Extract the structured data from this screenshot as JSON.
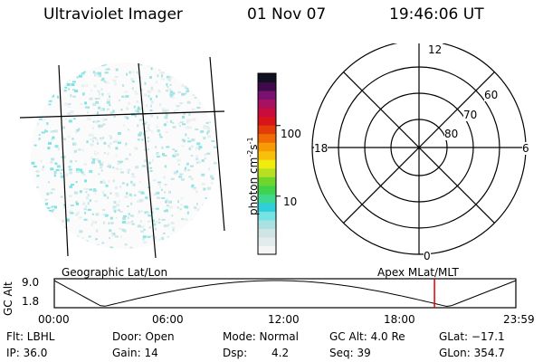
{
  "header": {
    "instrument": "Ultraviolet Imager",
    "date": "01 Nov 07",
    "time": "19:46:06 UT"
  },
  "colorbar": {
    "unit_label": "photon cm",
    "unit_exp1": "-2",
    "unit_mid": "s",
    "unit_exp2": "-1",
    "ticks": [
      {
        "label": "100",
        "value": 100
      },
      {
        "label": "10",
        "value": 10
      }
    ],
    "colors": [
      "#f5f5f5",
      "#e2ecec",
      "#cfe4e4",
      "#a9e0e0",
      "#73e3e3",
      "#2ecfd8",
      "#3fd890",
      "#3fd24a",
      "#6fd62d",
      "#b8e020",
      "#f0ec10",
      "#f8c00a",
      "#f89a06",
      "#f06a06",
      "#e43c08",
      "#d8141a",
      "#c80c3c",
      "#a81060",
      "#7a1070",
      "#3e0a4a",
      "#101020"
    ]
  },
  "polar": {
    "labels_mlt": [
      {
        "label": "12",
        "pos": "top"
      },
      {
        "label": "18",
        "pos": "left"
      },
      {
        "label": "6",
        "pos": "right"
      },
      {
        "label": "0",
        "pos": "bottom"
      }
    ],
    "labels_lat": [
      {
        "label": "60",
        "ring": 3
      },
      {
        "label": "70",
        "ring": 2
      },
      {
        "label": "80",
        "ring": 1
      }
    ]
  },
  "timeline": {
    "left_label": "Geographic Lat/Lon",
    "right_label": "Apex MLat/MLT",
    "axis_label": "GC Alt",
    "y_max": "9.0",
    "y_min": "1.8",
    "ticks": [
      "00:00",
      "06:00",
      "12:00",
      "18:00",
      "23:59"
    ],
    "marker_color": "#e00000",
    "marker_hours": 19.768
  },
  "footer": {
    "flt": "Flt: LBHL",
    "ip": "IP: 36.0",
    "door": "Door: Open",
    "gain": "Gain: 14",
    "mode": "Mode: Normal",
    "dsp_label": "Dsp:",
    "dsp_value": "4.2",
    "gcalt": "GC Alt: 4.0 Re",
    "seq": "Seq: 39",
    "glat": "GLat: −17.1",
    "glon": "GLon: 354.7"
  }
}
